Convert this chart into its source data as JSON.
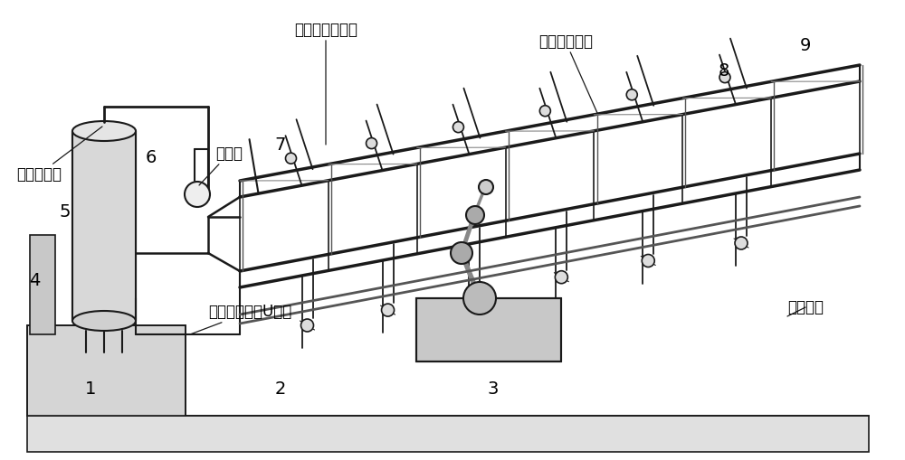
{
  "bg_color": "#ffffff",
  "line_color": "#1a1a1a",
  "text_color": "#000000",
  "labels": {
    "qi_pingheng": "气平衡管路",
    "qi_yabiao": "气压表",
    "fenliqi_rukou": "分离器入口管路",
    "danjing_rexifamen": "单井热洗阀门",
    "fenliqi_chukou": "分离器出口倒U型管",
    "huiyou_huiguan": "回油汇管",
    "num1": "1",
    "num2": "2",
    "num3": "3",
    "num4": "4",
    "num5": "5",
    "num6": "6",
    "num7": "7",
    "num8": "8",
    "num9": "9"
  }
}
